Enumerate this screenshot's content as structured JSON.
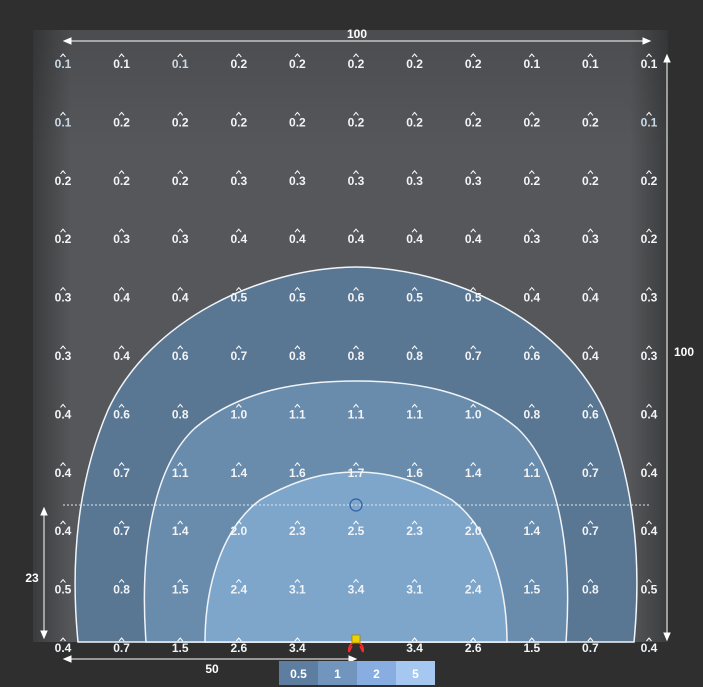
{
  "dimensions": {
    "width_label": "100",
    "height_label": "100",
    "mount_height_label": "23",
    "half_width_label": "50"
  },
  "grid_values": [
    [
      "0.1",
      "0.1",
      "0.1",
      "0.2",
      "0.2",
      "0.2",
      "0.2",
      "0.2",
      "0.1",
      "0.1",
      "0.1"
    ],
    [
      "0.1",
      "0.2",
      "0.2",
      "0.2",
      "0.2",
      "0.2",
      "0.2",
      "0.2",
      "0.2",
      "0.2",
      "0.1"
    ],
    [
      "0.2",
      "0.2",
      "0.2",
      "0.3",
      "0.3",
      "0.3",
      "0.3",
      "0.3",
      "0.2",
      "0.2",
      "0.2"
    ],
    [
      "0.2",
      "0.3",
      "0.3",
      "0.4",
      "0.4",
      "0.4",
      "0.4",
      "0.4",
      "0.3",
      "0.3",
      "0.2"
    ],
    [
      "0.3",
      "0.4",
      "0.4",
      "0.5",
      "0.5",
      "0.6",
      "0.5",
      "0.5",
      "0.4",
      "0.4",
      "0.3"
    ],
    [
      "0.3",
      "0.4",
      "0.6",
      "0.7",
      "0.8",
      "0.8",
      "0.8",
      "0.7",
      "0.6",
      "0.4",
      "0.3"
    ],
    [
      "0.4",
      "0.6",
      "0.8",
      "1.0",
      "1.1",
      "1.1",
      "1.1",
      "1.0",
      "0.8",
      "0.6",
      "0.4"
    ],
    [
      "0.4",
      "0.7",
      "1.1",
      "1.4",
      "1.6",
      "1.7",
      "1.6",
      "1.4",
      "1.1",
      "0.7",
      "0.4"
    ],
    [
      "0.4",
      "0.7",
      "1.4",
      "2.0",
      "2.3",
      "2.5",
      "2.3",
      "2.0",
      "1.4",
      "0.7",
      "0.4"
    ],
    [
      "0.5",
      "0.8",
      "1.5",
      "2.4",
      "3.1",
      "3.4",
      "3.1",
      "2.4",
      "1.5",
      "0.8",
      "0.5"
    ],
    [
      "0.4",
      "0.7",
      "1.5",
      "2.6",
      "3.4",
      "",
      "3.4",
      "2.6",
      "1.5",
      "0.7",
      "0.4"
    ]
  ],
  "dim_cells": [
    [
      0,
      0
    ],
    [
      0,
      2
    ],
    [
      1,
      0
    ],
    [
      1,
      10
    ]
  ],
  "legend": {
    "levels": [
      "0.5",
      "1",
      "2",
      "5"
    ],
    "colors": [
      "#5d7ea1",
      "#7195bd",
      "#87ade1",
      "#a6c8f0"
    ]
  },
  "colors": {
    "background": "#2f2f2f",
    "room": "#56585b",
    "contour_fill": [
      "#5a7897",
      "#6b8dae",
      "#7fa6cb",
      "#98bde2"
    ],
    "contour_stroke": "#f0f4f8",
    "fixture": "#f0d000",
    "observer": "#ff2a2a"
  },
  "icons": [
    "luminaire-icon",
    "observer-icon",
    "measurement-point-icon"
  ]
}
